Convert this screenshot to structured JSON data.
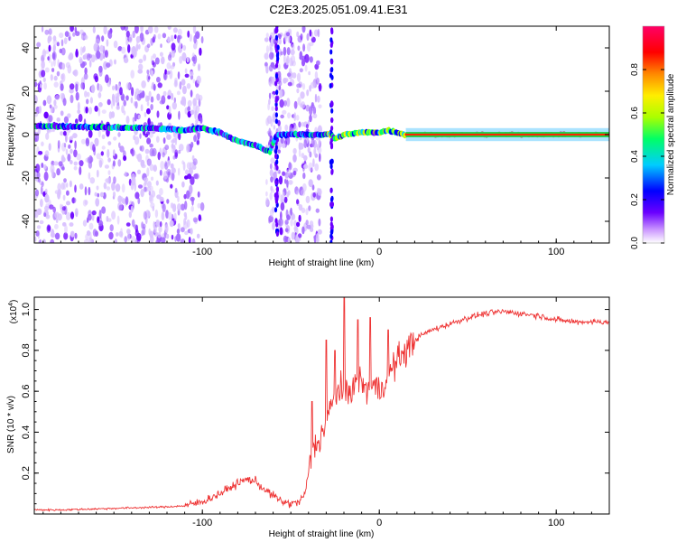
{
  "window_title": "C2E3.2025.051.09.41.E31",
  "chart_data": [
    {
      "type": "heatmap",
      "title": "C2E3.2025.051.09.41.E31",
      "xlabel": "Height of straight line (km)",
      "ylabel": "Frequency (Hz)",
      "xlim": [
        -195,
        130
      ],
      "ylim": [
        -50,
        50
      ],
      "xticks": [
        -100,
        0,
        100
      ],
      "yticks": [
        -40,
        -20,
        0,
        20,
        40
      ],
      "colorbar": {
        "label": "Normalized spectral amplitude",
        "range": [
          0.0,
          1.0
        ],
        "ticks": [
          "0.0",
          "0.2",
          "0.4",
          "0.6",
          "0.8"
        ],
        "colors": [
          "#ffffff",
          "#cc99ff",
          "#6a00ff",
          "#0000ff",
          "#00ccff",
          "#00ff66",
          "#aaff00",
          "#ffee00",
          "#ff8800",
          "#ff0000",
          "#ff0066"
        ]
      },
      "ridge": {
        "x": [
          -195,
          -160,
          -130,
          -110,
          -100,
          -90,
          -80,
          -70,
          -62,
          -58,
          -30,
          -27,
          -25,
          -20,
          -10,
          0,
          5,
          10,
          15,
          50,
          100,
          130
        ],
        "y": [
          4,
          3.5,
          3,
          2,
          3,
          1,
          -3,
          -5,
          -8,
          0,
          0,
          0,
          -2,
          0,
          1,
          1,
          2,
          1,
          0,
          0,
          0,
          0
        ]
      },
      "noise_regions": [
        [
          -195,
          -100
        ],
        [
          -64,
          -33
        ]
      ],
      "gap_regions": [
        [
          -100,
          -64
        ],
        [
          -33,
          -27
        ]
      ]
    },
    {
      "type": "line",
      "xlabel": "Height of straight line (km)",
      "ylabel": "SNR (10 * v/v)",
      "y_multiplier": "(x10",
      "y_multiplier_exp": "4",
      "xlim": [
        -195,
        130
      ],
      "ylim": [
        0,
        1.06
      ],
      "xticks": [
        -100,
        0,
        100
      ],
      "yticks": [
        0.2,
        0.4,
        0.6,
        0.8,
        1.0
      ],
      "ytick_labels": [
        "0.2",
        "0.4",
        "0.6",
        "0.8",
        "1.0"
      ],
      "color": "#ee3333",
      "series": [
        {
          "x": [
            -195,
            -180,
            -160,
            -140,
            -120,
            -110,
            -100,
            -90,
            -80,
            -75,
            -70,
            -65,
            -60,
            -55,
            -50,
            -45,
            -42,
            -40,
            -38,
            -35,
            -32,
            -30,
            -28,
            -26,
            -24,
            -22,
            -20,
            -18,
            -15,
            -12,
            -10,
            -8,
            -5,
            -2,
            0,
            5,
            10,
            15,
            20,
            25,
            30,
            40,
            50,
            60,
            70,
            80,
            90,
            100,
            110,
            120,
            130
          ],
          "y": [
            0.02,
            0.02,
            0.025,
            0.03,
            0.035,
            0.04,
            0.06,
            0.1,
            0.15,
            0.17,
            0.16,
            0.12,
            0.09,
            0.06,
            0.05,
            0.06,
            0.1,
            0.2,
            0.3,
            0.35,
            0.4,
            0.45,
            0.5,
            0.55,
            0.6,
            0.62,
            0.58,
            0.6,
            0.62,
            0.64,
            0.66,
            0.6,
            0.62,
            0.63,
            0.6,
            0.68,
            0.75,
            0.8,
            0.85,
            0.88,
            0.9,
            0.93,
            0.96,
            0.98,
            0.99,
            0.98,
            0.97,
            0.95,
            0.94,
            0.94,
            0.94
          ]
        }
      ],
      "spikes": [
        [
          -38,
          0.55
        ],
        [
          -30,
          0.85
        ],
        [
          -25,
          0.8
        ],
        [
          -20,
          1.06
        ],
        [
          -12,
          0.95
        ],
        [
          -5,
          0.96
        ],
        [
          5,
          0.9
        ]
      ]
    }
  ]
}
